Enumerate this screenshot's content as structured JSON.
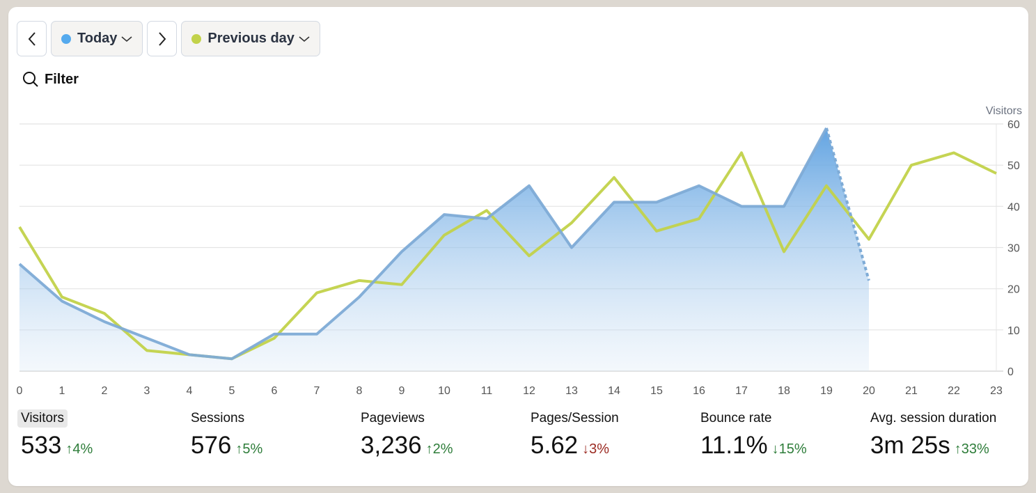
{
  "toolbar": {
    "prev_label": "<",
    "next_label": ">",
    "current_period": {
      "label": "Today",
      "color": "#55aaee"
    },
    "compare_period": {
      "label": "Previous day",
      "color": "#c2d24a"
    }
  },
  "filter": {
    "label": "Filter",
    "icon": "search-icon"
  },
  "chart_data": {
    "type": "line",
    "title": "",
    "xlabel": "",
    "ylabel": "Visitors",
    "x": [
      0,
      1,
      2,
      3,
      4,
      5,
      6,
      7,
      8,
      9,
      10,
      11,
      12,
      13,
      14,
      15,
      16,
      17,
      18,
      19,
      20,
      21,
      22,
      23
    ],
    "x_tick_labels": [
      "0",
      "1",
      "2",
      "3",
      "4",
      "5",
      "6",
      "7",
      "8",
      "9",
      "10",
      "11",
      "12",
      "13",
      "14",
      "15",
      "16",
      "17",
      "18",
      "19",
      "20",
      "21",
      "22",
      "23"
    ],
    "y_tick_labels": [
      "0",
      "10",
      "20",
      "30",
      "40",
      "50",
      "60"
    ],
    "ylim": [
      0,
      60
    ],
    "grid": true,
    "legend_position": "top (period selector buttons)",
    "series": [
      {
        "name": "Today",
        "color": "#7eabd6",
        "fill": true,
        "dashed_from_index": 19,
        "values": [
          26,
          17,
          12,
          8,
          4,
          3,
          9,
          9,
          18,
          29,
          38,
          37,
          45,
          30,
          41,
          41,
          45,
          40,
          40,
          59,
          22,
          null,
          null,
          null
        ]
      },
      {
        "name": "Previous day",
        "color": "#c2d24a",
        "fill": false,
        "values": [
          35,
          18,
          14,
          5,
          4,
          3,
          8,
          19,
          22,
          21,
          33,
          39,
          28,
          36,
          47,
          34,
          37,
          53,
          29,
          45,
          32,
          50,
          53,
          48
        ]
      }
    ]
  },
  "stats": [
    {
      "label": "Visitors",
      "value": "533",
      "change": "4%",
      "direction": "up",
      "active": true
    },
    {
      "label": "Sessions",
      "value": "576",
      "change": "5%",
      "direction": "up",
      "active": false
    },
    {
      "label": "Pageviews",
      "value": "3,236",
      "change": "2%",
      "direction": "up",
      "active": false
    },
    {
      "label": "Pages/Session",
      "value": "5.62",
      "change": "3%",
      "direction": "down",
      "active": false
    },
    {
      "label": "Bounce rate",
      "value": "11.1%",
      "change": "15%",
      "direction": "down-good",
      "active": false
    },
    {
      "label": "Avg. session duration",
      "value": "3m 25s",
      "change": "33%",
      "direction": "up",
      "active": false
    }
  ]
}
